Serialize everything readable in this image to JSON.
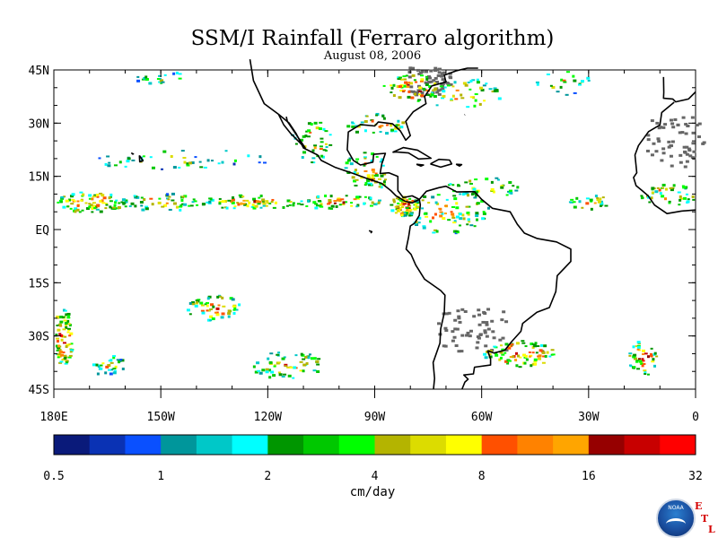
{
  "map": {
    "title": "SSM/I Rainfall (Ferraro algorithm)",
    "subtitle": "August 08, 2006",
    "lat_labels": [
      "45N",
      "30N",
      "15N",
      "EQ",
      "15S",
      "30S",
      "45S"
    ],
    "lat_values": [
      45,
      30,
      15,
      0,
      -15,
      -30,
      -45
    ],
    "lon_labels": [
      "180E",
      "150W",
      "120W",
      "90W",
      "60W",
      "30W",
      "0"
    ],
    "lon_values": [
      -180,
      -150,
      -120,
      -90,
      -60,
      -30,
      0
    ],
    "extent": {
      "lon": [
        -180,
        0
      ],
      "lat": [
        -45,
        45
      ]
    }
  },
  "colorbar": {
    "colors": [
      "#0a1a7a",
      "#0a32b4",
      "#0a50ff",
      "#00969b",
      "#00c8c8",
      "#00ffff",
      "#009600",
      "#00c800",
      "#00ff00",
      "#b4b400",
      "#dcdc00",
      "#ffff00",
      "#ff5000",
      "#ff8200",
      "#ffa500",
      "#960000",
      "#c80000",
      "#ff0000"
    ],
    "tick_labels": [
      "0.5",
      "1",
      "2",
      "4",
      "8",
      "16",
      "32"
    ],
    "units": "cm/day"
  },
  "logo": {
    "text": "NOAA",
    "etl": [
      "E",
      "T",
      "L"
    ]
  },
  "rain_regions": [
    {
      "lon": -170,
      "lat": 8,
      "rlon": 10,
      "rlat": 3,
      "n": 90,
      "intensity": 0.7
    },
    {
      "lon": -150,
      "lat": 8,
      "rlon": 12,
      "rlat": 2.5,
      "n": 50,
      "intensity": 0.5
    },
    {
      "lon": -125,
      "lat": 8,
      "rlon": 14,
      "rlat": 2,
      "n": 70,
      "intensity": 0.6
    },
    {
      "lon": -100,
      "lat": 8,
      "rlon": 12,
      "rlat": 2,
      "n": 60,
      "intensity": 0.7
    },
    {
      "lon": -82,
      "lat": 7,
      "rlon": 4,
      "rlat": 3,
      "n": 70,
      "intensity": 0.95
    },
    {
      "lon": -70,
      "lat": 5,
      "rlon": 12,
      "rlat": 6,
      "n": 90,
      "intensity": 0.5
    },
    {
      "lon": -60,
      "lat": 12,
      "rlon": 10,
      "rlat": 3,
      "n": 40,
      "intensity": 0.5
    },
    {
      "lon": -93,
      "lat": 17,
      "rlon": 6,
      "rlat": 5,
      "n": 45,
      "intensity": 0.7
    },
    {
      "lon": -108,
      "lat": 25,
      "rlon": 6,
      "rlat": 6,
      "n": 40,
      "intensity": 0.6
    },
    {
      "lon": -80,
      "lat": 40,
      "rlon": 8,
      "rlat": 4,
      "n": 60,
      "intensity": 0.8
    },
    {
      "lon": -90,
      "lat": 30,
      "rlon": 8,
      "rlat": 3,
      "n": 40,
      "intensity": 0.6
    },
    {
      "lon": -65,
      "lat": 38,
      "rlon": 10,
      "rlat": 5,
      "n": 45,
      "intensity": 0.6
    },
    {
      "lon": -178,
      "lat": -30,
      "rlon": 3,
      "rlat": 8,
      "n": 90,
      "intensity": 0.8
    },
    {
      "lon": -165,
      "lat": -38,
      "rlon": 5,
      "rlat": 3,
      "n": 30,
      "intensity": 0.4
    },
    {
      "lon": -135,
      "lat": -22,
      "rlon": 8,
      "rlat": 4,
      "n": 55,
      "intensity": 0.6
    },
    {
      "lon": -115,
      "lat": -38,
      "rlon": 10,
      "rlat": 4,
      "n": 60,
      "intensity": 0.6
    },
    {
      "lon": -50,
      "lat": -35,
      "rlon": 10,
      "rlat": 4,
      "n": 80,
      "intensity": 0.8
    },
    {
      "lon": -15,
      "lat": -36,
      "rlon": 4,
      "rlat": 5,
      "n": 50,
      "intensity": 0.8
    },
    {
      "lon": -8,
      "lat": 10,
      "rlon": 8,
      "rlat": 3,
      "n": 45,
      "intensity": 0.6
    },
    {
      "lon": -30,
      "lat": 8,
      "rlon": 6,
      "rlat": 2,
      "n": 25,
      "intensity": 0.6
    },
    {
      "lon": -38,
      "lat": 42,
      "rlon": 8,
      "rlat": 4,
      "n": 25,
      "intensity": 0.5
    },
    {
      "lon": -90,
      "lat": 14,
      "rlon": 3,
      "rlat": 2,
      "n": 20,
      "intensity": 0.8
    },
    {
      "lon": -145,
      "lat": 20,
      "rlon": 25,
      "rlat": 3,
      "n": 45,
      "intensity": 0.2
    },
    {
      "lon": -150,
      "lat": 43,
      "rlon": 8,
      "rlat": 2,
      "n": 20,
      "intensity": 0.3
    }
  ],
  "land_masks": [
    {
      "lon": -6,
      "lat": 25,
      "rlon": 8,
      "rlat": 7
    },
    {
      "lon": -63,
      "lat": -28,
      "rlon": 10,
      "rlat": 6
    },
    {
      "lon": -75,
      "lat": 42,
      "rlon": 6,
      "rlat": 4
    }
  ]
}
